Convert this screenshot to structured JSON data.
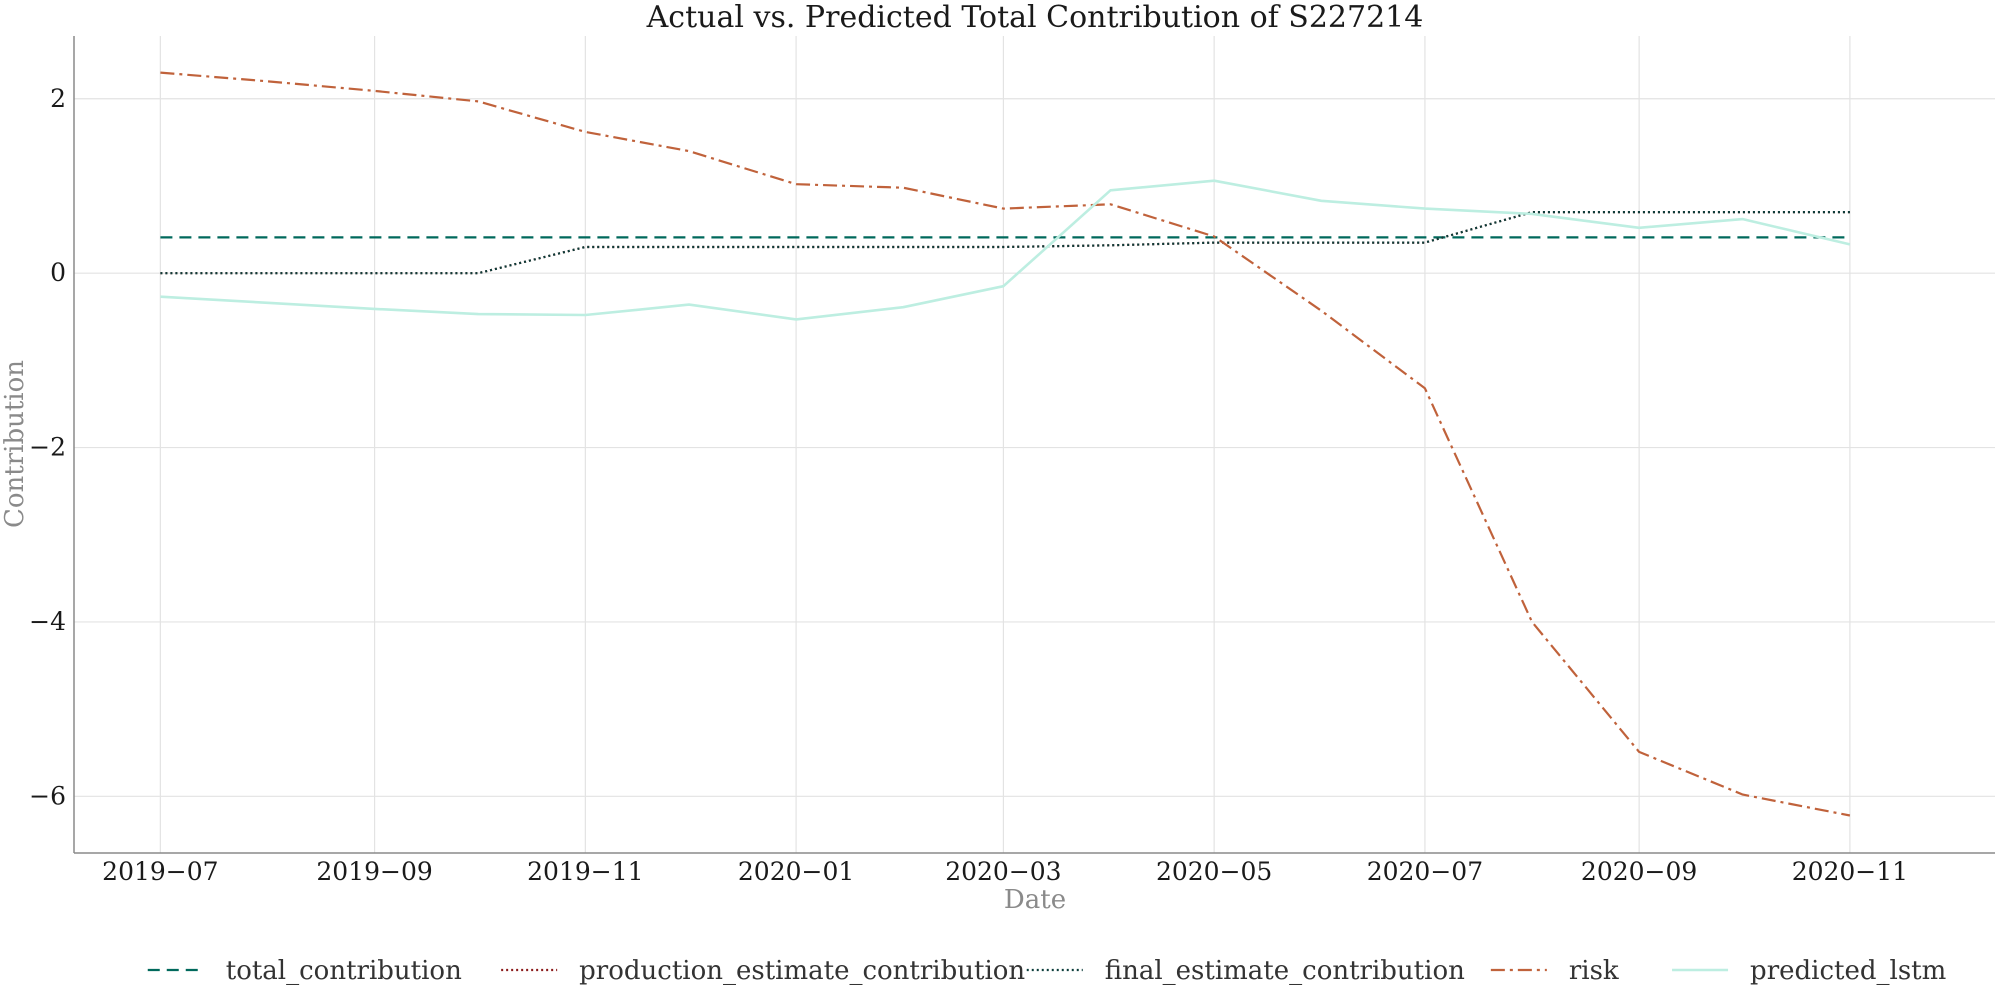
{
  "chart_data": {
    "type": "line",
    "title": "Actual vs. Predicted Total Contribution of S227214",
    "xlabel": "Date",
    "ylabel": "Contribution",
    "x": [
      "2019-07",
      "2019-08",
      "2019-09",
      "2019-10",
      "2019-11",
      "2019-12",
      "2020-01",
      "2020-02",
      "2020-03",
      "2020-04",
      "2020-05",
      "2020-06",
      "2020-07",
      "2020-08",
      "2020-09",
      "2020-10",
      "2020-11"
    ],
    "x_ticks": [
      "2019-07",
      "2019-09",
      "2019-11",
      "2020-01",
      "2020-03",
      "2020-05",
      "2020-07",
      "2020-09",
      "2020-11"
    ],
    "x_tick_labels": [
      "2019−07",
      "2019−09",
      "2019−11",
      "2020−01",
      "2020−03",
      "2020−05",
      "2020−07",
      "2020−09",
      "2020−11"
    ],
    "xlim": [
      "2019-06-06",
      "2020-12-13"
    ],
    "ylim": [
      -6.65,
      2.72
    ],
    "y_ticks": [
      2,
      0,
      -2,
      -4,
      -6
    ],
    "y_tick_labels": [
      "2",
      "0",
      "−2",
      "−4",
      "−6"
    ],
    "grid": true,
    "legend_position": "bottom",
    "series": [
      {
        "name": "total_contribution",
        "color": "#00695c",
        "dash": "12,7",
        "width": 2.2,
        "values": [
          0.41,
          0.41,
          0.41,
          0.41,
          0.41,
          0.41,
          0.41,
          0.41,
          0.41,
          0.41,
          0.41,
          0.41,
          0.41,
          0.41,
          0.41,
          0.41,
          0.41
        ]
      },
      {
        "name": "production_estimate_contribution",
        "color": "#8b1a1a",
        "dash": "2,3",
        "width": 2.2,
        "values": [
          0,
          0,
          0,
          0,
          0.3,
          0.3,
          0.3,
          0.3,
          0.3,
          0.32,
          0.35,
          0.35,
          0.35,
          0.7,
          0.7,
          0.7,
          0.7
        ]
      },
      {
        "name": "final_estimate_contribution",
        "color": "#0b3d3a",
        "dash": "2,3",
        "width": 2.2,
        "values": [
          0,
          0,
          0,
          0,
          0.3,
          0.3,
          0.3,
          0.3,
          0.3,
          0.32,
          0.35,
          0.35,
          0.35,
          0.7,
          0.7,
          0.7,
          0.7
        ]
      },
      {
        "name": "risk",
        "color": "#c0623b",
        "dash": "14,5,3,5",
        "width": 2.2,
        "values": [
          2.3,
          2.2,
          2.09,
          1.97,
          1.62,
          1.4,
          1.02,
          0.98,
          0.74,
          0.79,
          0.42,
          -0.43,
          -1.32,
          -4.0,
          -5.49,
          -5.98,
          -6.22
        ]
      },
      {
        "name": "predicted_lstm",
        "color": "#bdeee1",
        "dash": "",
        "width": 2.6,
        "values": [
          -0.27,
          -0.34,
          -0.41,
          -0.47,
          -0.48,
          -0.36,
          -0.53,
          -0.39,
          -0.15,
          0.95,
          1.06,
          0.83,
          0.74,
          0.68,
          0.52,
          0.62,
          0.33
        ]
      }
    ]
  }
}
